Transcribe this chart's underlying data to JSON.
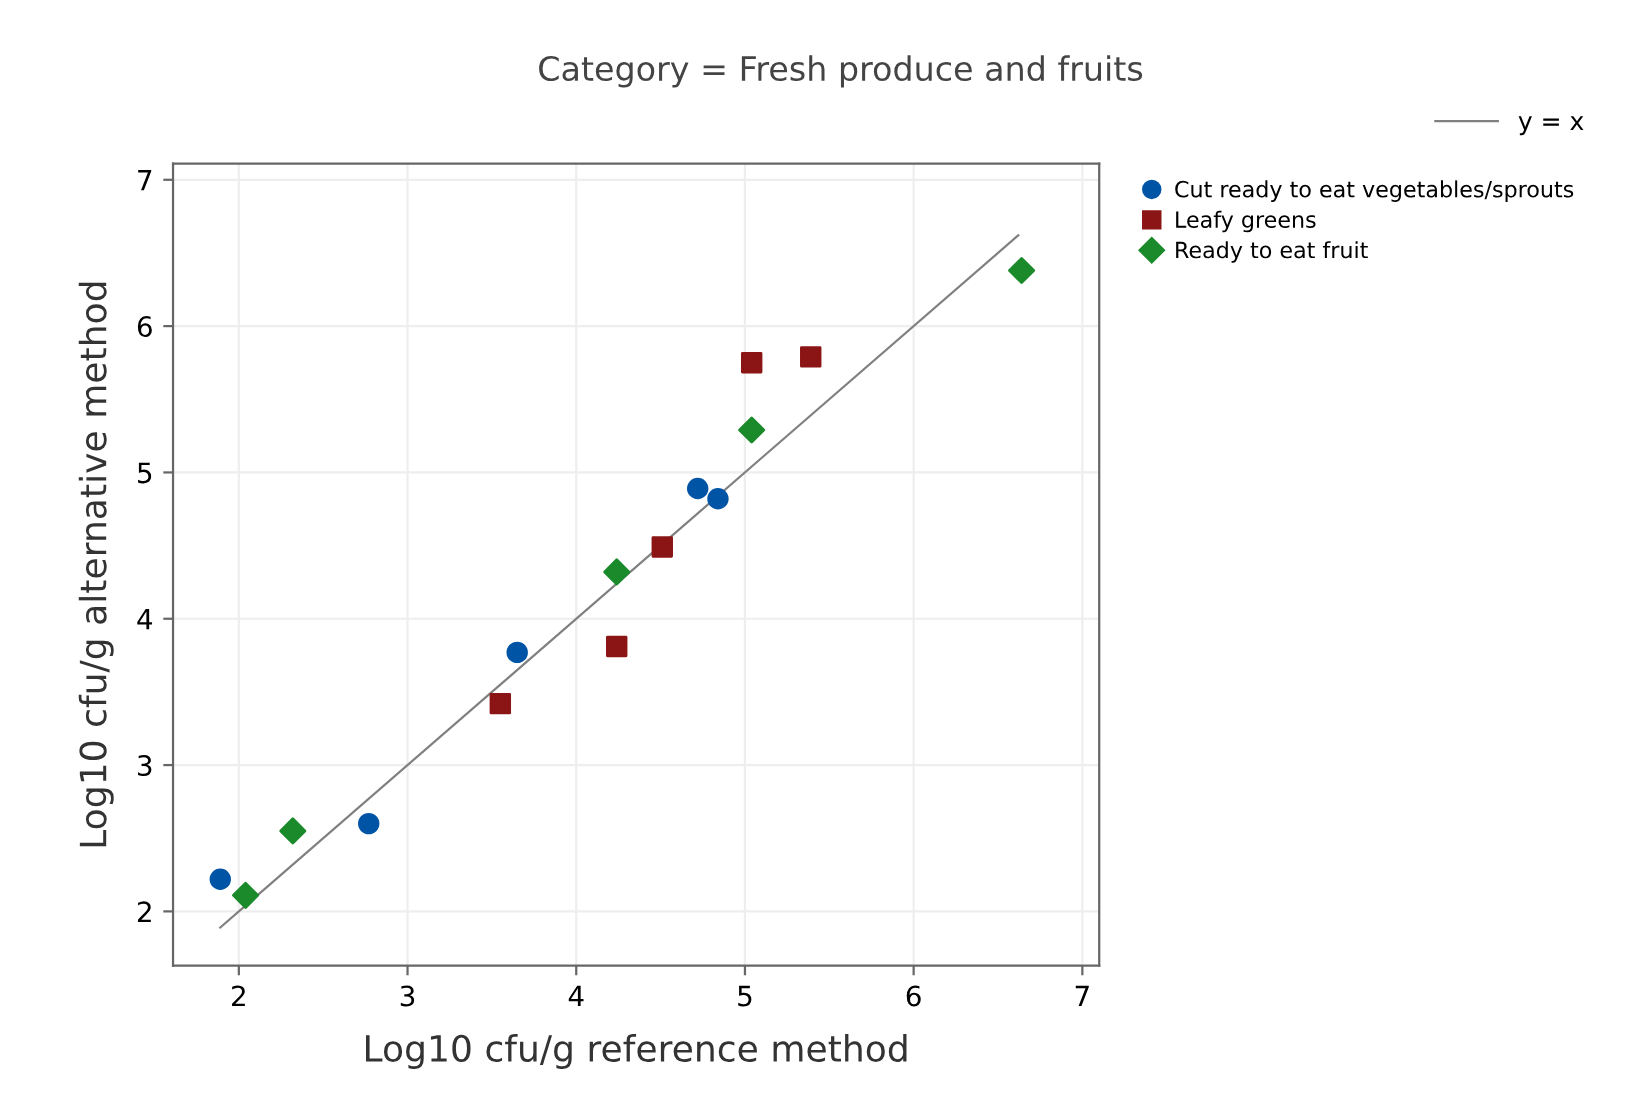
{
  "chart_data": {
    "type": "scatter",
    "title": "Category = Fresh produce and fruits",
    "xlabel": "Log10 cfu/g reference method",
    "ylabel": "Log10 cfu/g alternative method",
    "xlim": [
      1.61,
      7.1
    ],
    "ylim": [
      1.63,
      7.11
    ],
    "xticks": [
      2,
      3,
      4,
      5,
      6,
      7
    ],
    "yticks": [
      2,
      3,
      4,
      5,
      6,
      7
    ],
    "grid": true,
    "legend": "top right",
    "series": [
      {
        "name": "y = x",
        "type": "line",
        "color": "#808080",
        "marker": "none",
        "x": [
          1.89,
          6.62
        ],
        "values": [
          1.89,
          6.62
        ]
      },
      {
        "name": "Cut ready to eat vegetables/sprouts",
        "color": "#0054a6",
        "marker": "circle",
        "x": [
          1.89,
          2.77,
          3.65,
          4.72,
          4.84
        ],
        "values": [
          2.22,
          2.6,
          3.77,
          4.89,
          4.82
        ]
      },
      {
        "name": "Leafy greens",
        "color": "#8b1414",
        "marker": "square",
        "x": [
          3.55,
          4.24,
          4.51,
          5.04,
          5.39
        ],
        "values": [
          3.42,
          3.81,
          4.49,
          5.75,
          5.79
        ]
      },
      {
        "name": "Ready to eat fruit",
        "color": "#1a8a2a",
        "marker": "diamond",
        "x": [
          2.04,
          2.32,
          4.24,
          5.04,
          6.64
        ],
        "values": [
          2.11,
          2.55,
          4.32,
          5.29,
          6.38
        ]
      }
    ]
  }
}
